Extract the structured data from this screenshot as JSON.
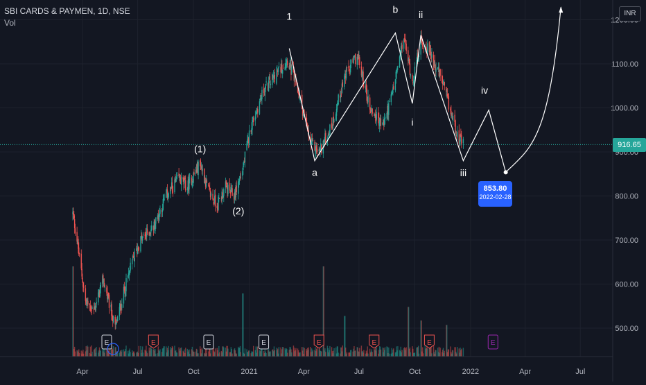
{
  "header": {
    "symbol_line": "SBI CARDS & PAYMEN, 1D, NSE",
    "volume_label": "Vol"
  },
  "currency_badge": "INR",
  "last_price": "916.65",
  "projection_callout": {
    "price": "853.80",
    "date": "2022-02-28"
  },
  "colors": {
    "background": "#131722",
    "up": "#26a69a",
    "down": "#ef5350",
    "accent": "#2962ff",
    "wave_line": "#ffffff"
  },
  "chart_data": {
    "type": "candlestick",
    "y_axis": {
      "ticks": [
        "500.00",
        "600.00",
        "700.00",
        "800.00",
        "900.00",
        "1000.00",
        "1100.00",
        "1200.00"
      ],
      "range": [
        440,
        1235
      ]
    },
    "x_axis": {
      "ticks": [
        "Apr",
        "Jul",
        "Oct",
        "2021",
        "Apr",
        "Jul",
        "Oct",
        "2022",
        "Apr",
        "Jul"
      ]
    },
    "price_path": [
      [
        "2020-03-16",
        760
      ],
      [
        "2020-03-23",
        700
      ],
      [
        "2020-04-06",
        560
      ],
      [
        "2020-04-20",
        540
      ],
      [
        "2020-05-05",
        610
      ],
      [
        "2020-05-25",
        500
      ],
      [
        "2020-06-08",
        580
      ],
      [
        "2020-06-22",
        650
      ],
      [
        "2020-07-06",
        700
      ],
      [
        "2020-07-27",
        730
      ],
      [
        "2020-08-17",
        800
      ],
      [
        "2020-09-07",
        840
      ],
      [
        "2020-09-21",
        820
      ],
      [
        "2020-10-12",
        875
      ],
      [
        "2020-10-26",
        810
      ],
      [
        "2020-11-09",
        780
      ],
      [
        "2020-11-23",
        820
      ],
      [
        "2020-12-07",
        800
      ],
      [
        "2020-12-21",
        860
      ],
      [
        "2021-01-04",
        960
      ],
      [
        "2021-01-25",
        1040
      ],
      [
        "2021-02-22",
        1090
      ],
      [
        "2021-03-05",
        1110
      ],
      [
        "2021-03-22",
        1040
      ],
      [
        "2021-04-12",
        920
      ],
      [
        "2021-04-26",
        900
      ],
      [
        "2021-05-17",
        960
      ],
      [
        "2021-06-07",
        1070
      ],
      [
        "2021-06-28",
        1120
      ],
      [
        "2021-07-19",
        1000
      ],
      [
        "2021-08-09",
        960
      ],
      [
        "2021-08-23",
        1020
      ],
      [
        "2021-09-13",
        1160
      ],
      [
        "2021-09-27",
        1060
      ],
      [
        "2021-10-11",
        1150
      ],
      [
        "2021-10-25",
        1130
      ],
      [
        "2021-11-15",
        1060
      ],
      [
        "2021-11-29",
        990
      ],
      [
        "2021-12-13",
        930
      ],
      [
        "2021-12-20",
        916.65
      ]
    ],
    "volume_spikes": [
      [
        "2020-03-16",
        1.0
      ],
      [
        "2020-12-21",
        0.7
      ],
      [
        "2021-05-03",
        1.0
      ],
      [
        "2021-06-07",
        0.45
      ],
      [
        "2021-09-20",
        0.55
      ],
      [
        "2021-10-11",
        0.4
      ],
      [
        "2021-11-22",
        0.35
      ]
    ],
    "event_markers": [
      {
        "date": "2020-05-11",
        "label": "E",
        "kind": "earnings-past"
      },
      {
        "date": "2020-07-27",
        "label": "E",
        "kind": "earnings"
      },
      {
        "date": "2020-10-26",
        "label": "E",
        "kind": "earnings-past"
      },
      {
        "date": "2021-01-25",
        "label": "E",
        "kind": "earnings-past"
      },
      {
        "date": "2021-04-26",
        "label": "E",
        "kind": "earnings"
      },
      {
        "date": "2021-07-26",
        "label": "E",
        "kind": "earnings"
      },
      {
        "date": "2021-10-25",
        "label": "E",
        "kind": "earnings"
      },
      {
        "date": "2022-02-07",
        "label": "E",
        "kind": "earnings-future"
      }
    ],
    "wave_path": [
      [
        "2021-03-08",
        1135
      ],
      [
        "2021-04-19",
        880
      ],
      [
        "2021-08-30",
        1170
      ],
      [
        "2021-09-27",
        1010
      ],
      [
        "2021-10-11",
        1165
      ],
      [
        "2021-12-20",
        880
      ],
      [
        "2022-01-31",
        995
      ],
      [
        "2022-02-28",
        853.8
      ]
    ],
    "projection_curve": [
      [
        "2022-02-28",
        853.8
      ],
      [
        "2022-04-11",
        910
      ],
      [
        "2022-05-09",
        1020
      ],
      [
        "2022-05-30",
        1235
      ]
    ],
    "wave_labels": [
      {
        "text": "1",
        "date": "2021-03-08",
        "price": 1200
      },
      {
        "text": "(1)",
        "date": "2020-10-12",
        "price": 899
      },
      {
        "text": "(2)",
        "date": "2020-12-14",
        "price": 758
      },
      {
        "text": "a",
        "date": "2021-04-19",
        "price": 846
      },
      {
        "text": "b",
        "date": "2021-08-30",
        "price": 1216
      },
      {
        "text": "ii",
        "date": "2021-10-11",
        "price": 1204
      },
      {
        "text": "i",
        "date": "2021-09-27",
        "price": 960
      },
      {
        "text": "iv",
        "date": "2022-01-24",
        "price": 1032
      },
      {
        "text": "iii",
        "date": "2021-12-20",
        "price": 845
      }
    ]
  }
}
